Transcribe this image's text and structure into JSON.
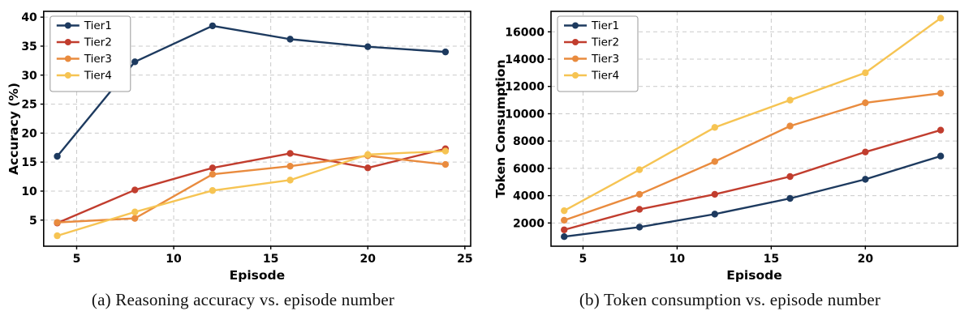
{
  "captions": [
    "(a) Reasoning accuracy vs. episode number",
    "(b) Token consumption vs. episode number"
  ],
  "palette": {
    "tier1": "#1d3a5f",
    "tier2": "#c13d2e",
    "tier3": "#e98b3e",
    "tier4": "#f6c453",
    "grid": "#c9c9c9",
    "axis": "#000000",
    "legend_border": "#9a9a9a"
  },
  "chart_data": [
    {
      "type": "line",
      "title": "",
      "xlabel": "Episode",
      "ylabel": "Accuracy (%)",
      "x": [
        4,
        8,
        12,
        16,
        20,
        24
      ],
      "xlim": [
        3.3,
        25.3
      ],
      "ylim": [
        0.5,
        41
      ],
      "xticks": [
        5,
        10,
        15,
        20,
        25
      ],
      "yticks": [
        5,
        10,
        15,
        20,
        25,
        30,
        35,
        40
      ],
      "grid": true,
      "legend_position": "top-left",
      "series": [
        {
          "name": "Tier1",
          "color": "#1d3a5f",
          "values": [
            16.0,
            32.3,
            38.5,
            36.2,
            34.9,
            34.0
          ]
        },
        {
          "name": "Tier2",
          "color": "#c13d2e",
          "values": [
            4.5,
            10.2,
            14.0,
            16.5,
            14.0,
            17.3
          ]
        },
        {
          "name": "Tier3",
          "color": "#e98b3e",
          "values": [
            4.6,
            5.3,
            12.9,
            14.3,
            16.1,
            14.6
          ]
        },
        {
          "name": "Tier4",
          "color": "#f6c453",
          "values": [
            2.3,
            6.4,
            10.1,
            11.9,
            16.3,
            16.9
          ]
        }
      ]
    },
    {
      "type": "line",
      "title": "",
      "xlabel": "Episode",
      "ylabel": "Token Consumption",
      "x": [
        4,
        8,
        12,
        16,
        20,
        24
      ],
      "xlim": [
        3.3,
        24.9
      ],
      "ylim": [
        300,
        17500
      ],
      "xticks": [
        5,
        10,
        15,
        20
      ],
      "yticks": [
        2000,
        4000,
        6000,
        8000,
        10000,
        12000,
        14000,
        16000
      ],
      "grid": true,
      "legend_position": "top-left",
      "series": [
        {
          "name": "Tier1",
          "color": "#1d3a5f",
          "values": [
            1000,
            1700,
            2650,
            3800,
            5200,
            6900
          ]
        },
        {
          "name": "Tier2",
          "color": "#c13d2e",
          "values": [
            1500,
            3000,
            4100,
            5400,
            7200,
            8800
          ]
        },
        {
          "name": "Tier3",
          "color": "#e98b3e",
          "values": [
            2200,
            4100,
            6500,
            9100,
            10800,
            11500
          ]
        },
        {
          "name": "Tier4",
          "color": "#f6c453",
          "values": [
            2900,
            5900,
            9000,
            11000,
            13000,
            17000
          ]
        }
      ]
    }
  ]
}
